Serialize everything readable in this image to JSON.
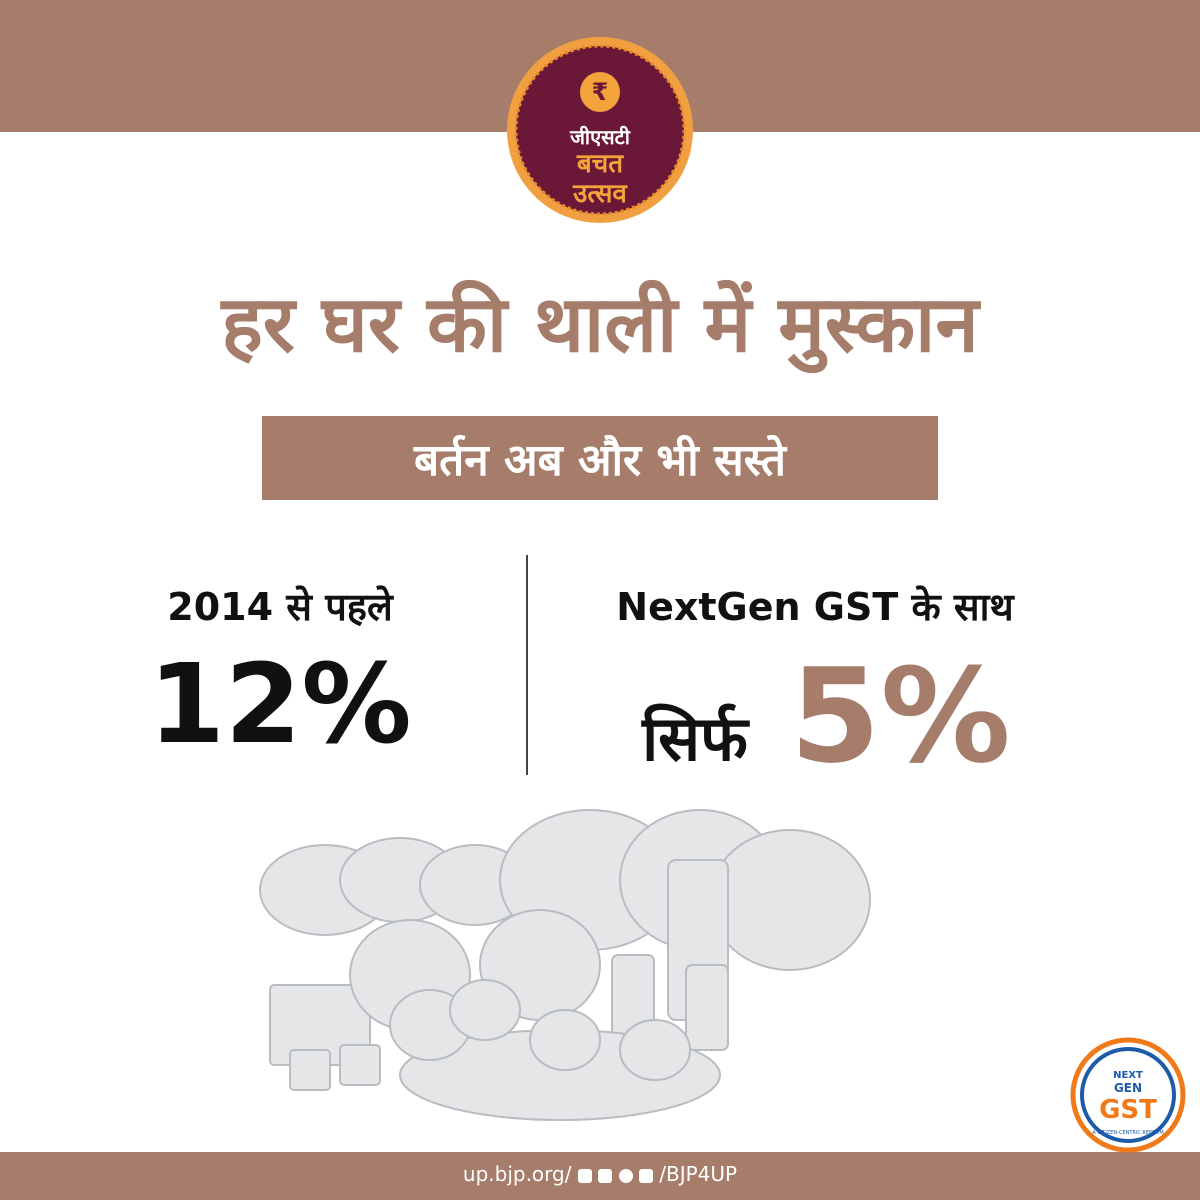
{
  "logo": {
    "line1": "जीएसटी",
    "line2": "बचत",
    "line3": "उत्सव"
  },
  "title": "हर घर की थाली में मुस्कान",
  "subtitle": "बर्तन अब और भी सस्ते",
  "before": {
    "label": "2014 से पहले",
    "rate": "12%"
  },
  "after": {
    "label": "NextGen GST के साथ",
    "prefix": "सिर्फ",
    "rate": "5%"
  },
  "footer": {
    "site": "up.bjp.org/",
    "handle": "/BJP4UP"
  },
  "badge": {
    "line1": "NEXT",
    "line2": "GEN",
    "line3": "GST",
    "tagline": "A CITIZEN-CENTRIC REFORM"
  }
}
